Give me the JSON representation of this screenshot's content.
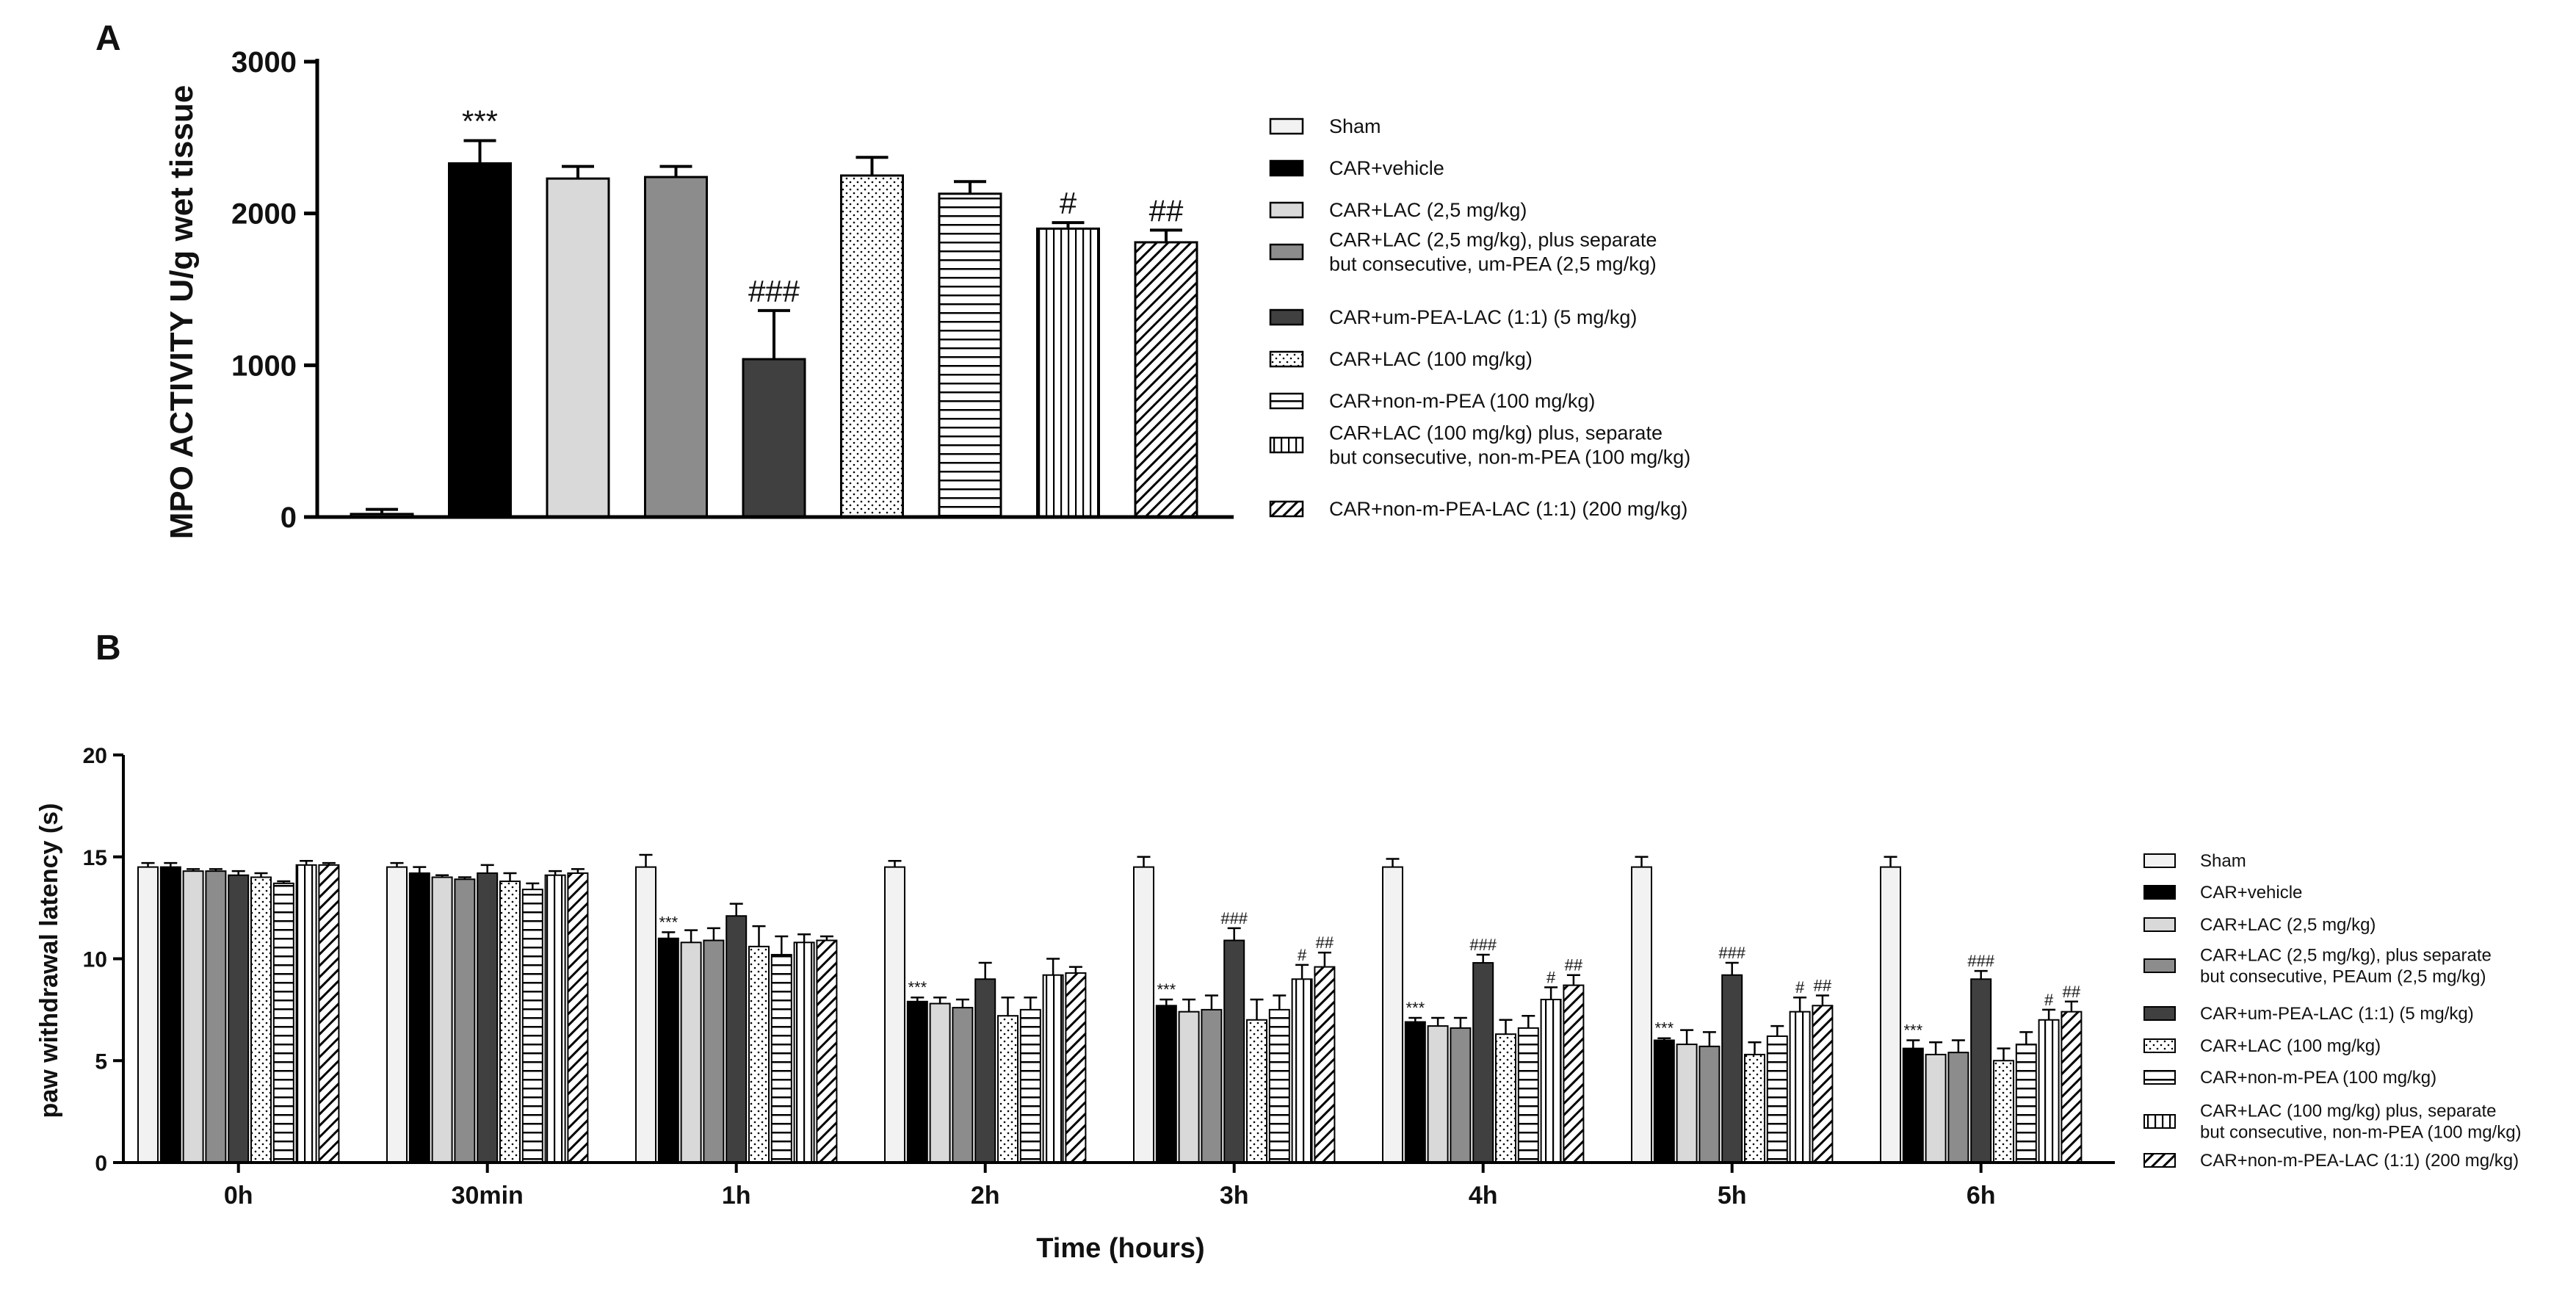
{
  "chart_data": [
    {
      "id": "A",
      "type": "bar",
      "panel_label": "A",
      "title": "",
      "xlabel": "",
      "ylabel": "MPO ACTIVITY U/g wet tissue",
      "ylim": [
        0,
        3000
      ],
      "yticks": [
        0,
        1000,
        2000,
        3000
      ],
      "series": [
        {
          "name": "Sham",
          "value": 20,
          "error": 30,
          "annotation": ""
        },
        {
          "name": "CAR+vehicle",
          "value": 2330,
          "error": 150,
          "annotation": "***"
        },
        {
          "name": "CAR+LAC (2,5 mg/kg)",
          "value": 2230,
          "error": 80,
          "annotation": ""
        },
        {
          "name": "CAR+LAC (2,5 mg/kg), plus separate but consecutive, um-PEA (2,5 mg/kg)",
          "value": 2240,
          "error": 70,
          "annotation": ""
        },
        {
          "name": "CAR+um-PEA-LAC (1:1) (5 mg/kg)",
          "value": 1040,
          "error": 320,
          "annotation": "###"
        },
        {
          "name": "CAR+LAC (100 mg/kg)",
          "value": 2250,
          "error": 120,
          "annotation": ""
        },
        {
          "name": "CAR+non-m-PEA (100 mg/kg)",
          "value": 2130,
          "error": 80,
          "annotation": ""
        },
        {
          "name": "CAR+LAC (100 mg/kg) plus, separate but consecutive, non-m-PEA (100 mg/kg)",
          "value": 1900,
          "error": 40,
          "annotation": "#"
        },
        {
          "name": "CAR+non-m-PEA-LAC (1:1) (200 mg/kg)",
          "value": 1810,
          "error": 80,
          "annotation": "##"
        }
      ],
      "legend": [
        {
          "pattern": "sham",
          "label_lines": [
            "Sham"
          ]
        },
        {
          "pattern": "vehicle",
          "label_lines": [
            "CAR+vehicle"
          ]
        },
        {
          "pattern": "lightgray",
          "label_lines": [
            "CAR+LAC (2,5 mg/kg)"
          ]
        },
        {
          "pattern": "medgray",
          "label_lines": [
            "CAR+LAC (2,5 mg/kg), plus separate",
            " but consecutive, um-PEA (2,5 mg/kg)"
          ]
        },
        {
          "pattern": "darkgray",
          "label_lines": [
            "CAR+um-PEA-LAC (1:1) (5 mg/kg)"
          ]
        },
        {
          "pattern": "dots",
          "label_lines": [
            "CAR+LAC (100 mg/kg)"
          ]
        },
        {
          "pattern": "hlines",
          "label_lines": [
            "CAR+non-m-PEA (100 mg/kg)"
          ]
        },
        {
          "pattern": "vlines",
          "label_lines": [
            "CAR+LAC (100 mg/kg) plus, separate",
            "but consecutive, non-m-PEA (100 mg/kg)"
          ]
        },
        {
          "pattern": "diag",
          "label_lines": [
            "CAR+non-m-PEA-LAC (1:1) (200 mg/kg)"
          ]
        }
      ],
      "colors": {
        "sham": "#f2f2f2",
        "vehicle": "#000000",
        "lightgray": "#d9d9d9",
        "medgray": "#8c8c8c",
        "darkgray": "#404040"
      }
    },
    {
      "id": "B",
      "type": "bar",
      "panel_label": "B",
      "title": "",
      "xlabel": "Time (hours)",
      "ylabel": "paw withdrawal latency (s)",
      "ylim": [
        0,
        20
      ],
      "yticks": [
        0,
        5,
        10,
        15,
        20
      ],
      "categories": [
        "0h",
        "30min",
        "1h",
        "2h",
        "3h",
        "4h",
        "5h",
        "6h"
      ],
      "series": [
        {
          "name": "Sham",
          "values": [
            14.5,
            14.5,
            14.5,
            14.5,
            14.5,
            14.5,
            14.5,
            14.5
          ],
          "errors": [
            0.2,
            0.2,
            0.6,
            0.3,
            0.5,
            0.4,
            0.5,
            0.5
          ]
        },
        {
          "name": "CAR+vehicle",
          "values": [
            14.5,
            14.2,
            11.0,
            7.9,
            7.7,
            6.9,
            6.0,
            5.6
          ],
          "errors": [
            0.2,
            0.3,
            0.3,
            0.2,
            0.3,
            0.2,
            0.1,
            0.4
          ]
        },
        {
          "name": "CAR+LAC (2,5 mg/kg)",
          "values": [
            14.3,
            14.0,
            10.8,
            7.8,
            7.4,
            6.7,
            5.8,
            5.3
          ],
          "errors": [
            0.1,
            0.1,
            0.6,
            0.3,
            0.6,
            0.4,
            0.7,
            0.6
          ]
        },
        {
          "name": "CAR+LAC (2,5 mg/kg), plus separate but consecutive, PEAum (2,5 mg/kg)",
          "values": [
            14.3,
            13.9,
            10.9,
            7.6,
            7.5,
            6.6,
            5.7,
            5.4
          ],
          "errors": [
            0.1,
            0.1,
            0.6,
            0.4,
            0.7,
            0.5,
            0.7,
            0.6
          ]
        },
        {
          "name": "CAR+um-PEA-LAC (1:1) (5 mg/kg)",
          "values": [
            14.1,
            14.2,
            12.1,
            9.0,
            10.9,
            9.8,
            9.2,
            9.0
          ],
          "errors": [
            0.2,
            0.4,
            0.6,
            0.8,
            0.6,
            0.4,
            0.6,
            0.4
          ]
        },
        {
          "name": "CAR+LAC (100 mg/kg)",
          "values": [
            14.0,
            13.8,
            10.6,
            7.2,
            7.0,
            6.3,
            5.3,
            5.0
          ],
          "errors": [
            0.2,
            0.4,
            1.0,
            0.9,
            1.0,
            0.7,
            0.6,
            0.6
          ]
        },
        {
          "name": "CAR+non-m-PEA (100 mg/kg)",
          "values": [
            13.7,
            13.4,
            10.2,
            7.5,
            7.5,
            6.6,
            6.2,
            5.8
          ],
          "errors": [
            0.1,
            0.3,
            0.9,
            0.6,
            0.7,
            0.6,
            0.5,
            0.6
          ]
        },
        {
          "name": "CAR+LAC (100 mg/kg) plus, separate but consecutive, non-m-PEA (100 mg/kg)",
          "values": [
            14.6,
            14.1,
            10.8,
            9.2,
            9.0,
            8.0,
            7.4,
            7.0
          ],
          "errors": [
            0.2,
            0.2,
            0.4,
            0.8,
            0.7,
            0.6,
            0.7,
            0.5
          ]
        },
        {
          "name": "CAR+non-m-PEA-LAC (1:1) (200 mg/kg)",
          "values": [
            14.6,
            14.2,
            10.9,
            9.3,
            9.6,
            8.7,
            7.7,
            7.4
          ],
          "errors": [
            0.1,
            0.2,
            0.2,
            0.3,
            0.7,
            0.5,
            0.5,
            0.5
          ]
        }
      ],
      "annotations": [
        {
          "category_index": 2,
          "series_index": 1,
          "text": "***"
        },
        {
          "category_index": 3,
          "series_index": 1,
          "text": "***"
        },
        {
          "category_index": 4,
          "series_index": 1,
          "text": "***"
        },
        {
          "category_index": 4,
          "series_index": 4,
          "text": "###"
        },
        {
          "category_index": 4,
          "series_index": 7,
          "text": "#"
        },
        {
          "category_index": 4,
          "series_index": 8,
          "text": "##"
        },
        {
          "category_index": 5,
          "series_index": 1,
          "text": "***"
        },
        {
          "category_index": 5,
          "series_index": 4,
          "text": "###"
        },
        {
          "category_index": 5,
          "series_index": 7,
          "text": "#"
        },
        {
          "category_index": 5,
          "series_index": 8,
          "text": "##"
        },
        {
          "category_index": 6,
          "series_index": 1,
          "text": "***"
        },
        {
          "category_index": 6,
          "series_index": 4,
          "text": "###"
        },
        {
          "category_index": 6,
          "series_index": 7,
          "text": "#"
        },
        {
          "category_index": 6,
          "series_index": 8,
          "text": "##"
        },
        {
          "category_index": 7,
          "series_index": 1,
          "text": "***"
        },
        {
          "category_index": 7,
          "series_index": 4,
          "text": "###"
        },
        {
          "category_index": 7,
          "series_index": 7,
          "text": "#"
        },
        {
          "category_index": 7,
          "series_index": 8,
          "text": "##"
        }
      ],
      "legend": [
        {
          "pattern": "sham",
          "label_lines": [
            "Sham"
          ]
        },
        {
          "pattern": "vehicle",
          "label_lines": [
            "CAR+vehicle"
          ]
        },
        {
          "pattern": "lightgray",
          "label_lines": [
            "CAR+LAC (2,5 mg/kg)"
          ]
        },
        {
          "pattern": "medgray",
          "label_lines": [
            "CAR+LAC (2,5 mg/kg), plus separate",
            "but consecutive, PEAum (2,5 mg/kg)"
          ]
        },
        {
          "pattern": "darkgray",
          "label_lines": [
            "CAR+um-PEA-LAC (1:1) (5 mg/kg)"
          ]
        },
        {
          "pattern": "dots",
          "label_lines": [
            "CAR+LAC (100 mg/kg)"
          ]
        },
        {
          "pattern": "hlines",
          "label_lines": [
            "CAR+non-m-PEA (100 mg/kg)"
          ]
        },
        {
          "pattern": "vlines",
          "label_lines": [
            "CAR+LAC (100 mg/kg) plus, separate",
            "but consecutive, non-m-PEA (100 mg/kg)"
          ]
        },
        {
          "pattern": "diag",
          "label_lines": [
            "CAR+non-m-PEA-LAC (1:1) (200 mg/kg)"
          ]
        }
      ]
    }
  ]
}
